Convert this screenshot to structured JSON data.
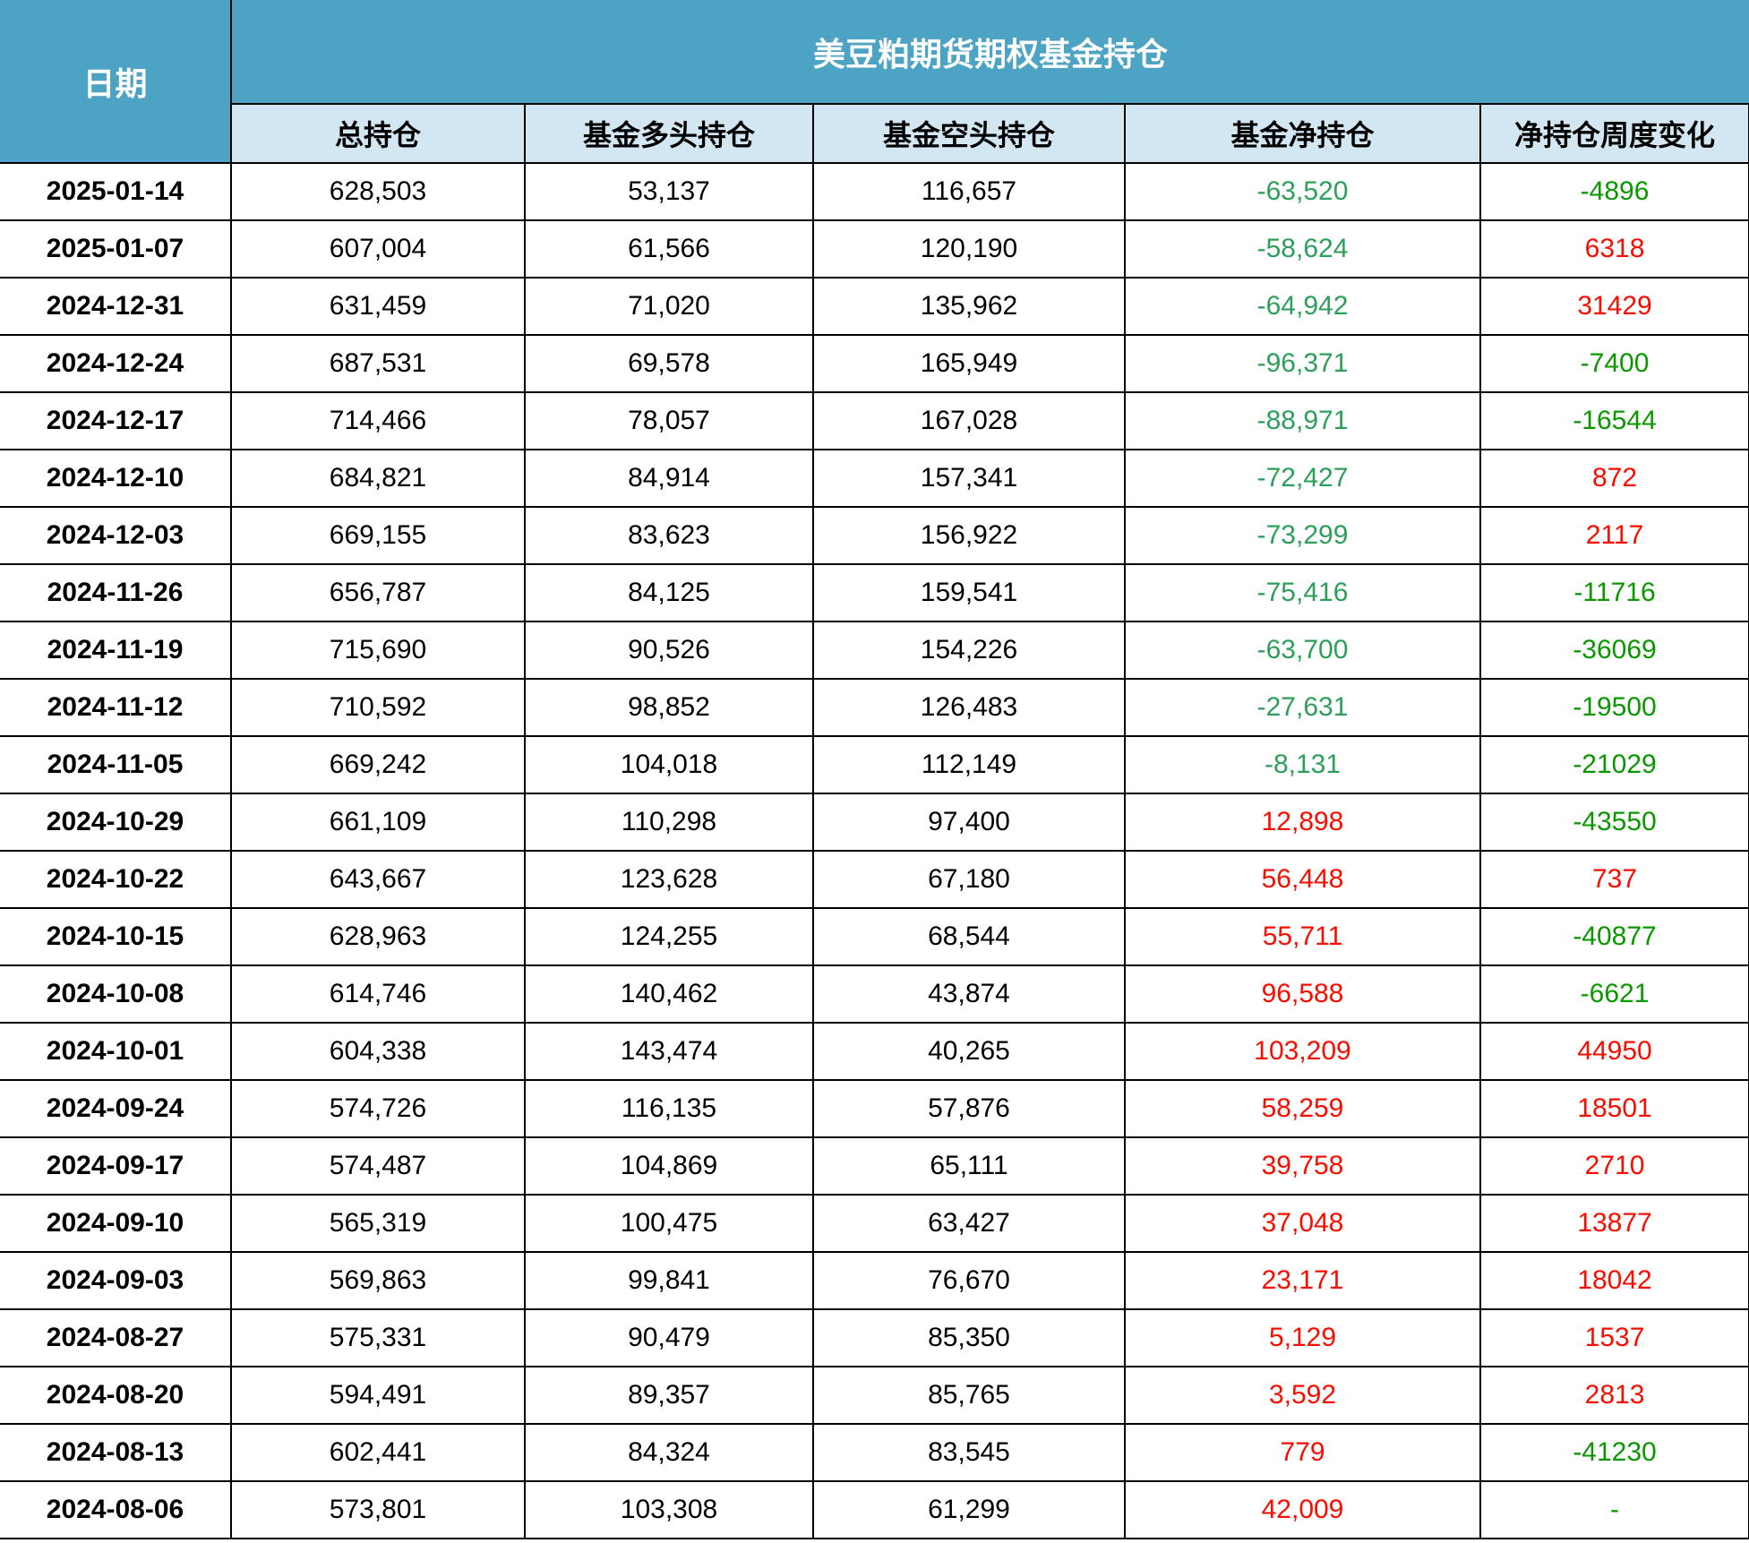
{
  "header": {
    "date_col": "日期",
    "group_title": "美豆粕期货期权基金持仓",
    "sub_columns": [
      "总持仓",
      "基金多头持仓",
      "基金空头持仓",
      "基金净持仓",
      "净持仓周度变化"
    ]
  },
  "colors": {
    "header_bg": "#4CA3C4",
    "subheader_bg": "#D3E7F2",
    "positive": "#F90D00",
    "net_negative": "#2E9E5B",
    "change_negative": "#0B9700"
  },
  "rows": [
    {
      "date": "2025-01-14",
      "total": "628,503",
      "long": "53,137",
      "short": "116,657",
      "net": "-63,520",
      "change": "-4896"
    },
    {
      "date": "2025-01-07",
      "total": "607,004",
      "long": "61,566",
      "short": "120,190",
      "net": "-58,624",
      "change": "6318"
    },
    {
      "date": "2024-12-31",
      "total": "631,459",
      "long": "71,020",
      "short": "135,962",
      "net": "-64,942",
      "change": "31429"
    },
    {
      "date": "2024-12-24",
      "total": "687,531",
      "long": "69,578",
      "short": "165,949",
      "net": "-96,371",
      "change": "-7400"
    },
    {
      "date": "2024-12-17",
      "total": "714,466",
      "long": "78,057",
      "short": "167,028",
      "net": "-88,971",
      "change": "-16544"
    },
    {
      "date": "2024-12-10",
      "total": "684,821",
      "long": "84,914",
      "short": "157,341",
      "net": "-72,427",
      "change": "872"
    },
    {
      "date": "2024-12-03",
      "total": "669,155",
      "long": "83,623",
      "short": "156,922",
      "net": "-73,299",
      "change": "2117"
    },
    {
      "date": "2024-11-26",
      "total": "656,787",
      "long": "84,125",
      "short": "159,541",
      "net": "-75,416",
      "change": "-11716"
    },
    {
      "date": "2024-11-19",
      "total": "715,690",
      "long": "90,526",
      "short": "154,226",
      "net": "-63,700",
      "change": "-36069"
    },
    {
      "date": "2024-11-12",
      "total": "710,592",
      "long": "98,852",
      "short": "126,483",
      "net": "-27,631",
      "change": "-19500"
    },
    {
      "date": "2024-11-05",
      "total": "669,242",
      "long": "104,018",
      "short": "112,149",
      "net": "-8,131",
      "change": "-21029"
    },
    {
      "date": "2024-10-29",
      "total": "661,109",
      "long": "110,298",
      "short": "97,400",
      "net": "12,898",
      "change": "-43550"
    },
    {
      "date": "2024-10-22",
      "total": "643,667",
      "long": "123,628",
      "short": "67,180",
      "net": "56,448",
      "change": "737"
    },
    {
      "date": "2024-10-15",
      "total": "628,963",
      "long": "124,255",
      "short": "68,544",
      "net": "55,711",
      "change": "-40877"
    },
    {
      "date": "2024-10-08",
      "total": "614,746",
      "long": "140,462",
      "short": "43,874",
      "net": "96,588",
      "change": "-6621"
    },
    {
      "date": "2024-10-01",
      "total": "604,338",
      "long": "143,474",
      "short": "40,265",
      "net": "103,209",
      "change": "44950"
    },
    {
      "date": "2024-09-24",
      "total": "574,726",
      "long": "116,135",
      "short": "57,876",
      "net": "58,259",
      "change": "18501"
    },
    {
      "date": "2024-09-17",
      "total": "574,487",
      "long": "104,869",
      "short": "65,111",
      "net": "39,758",
      "change": "2710"
    },
    {
      "date": "2024-09-10",
      "total": "565,319",
      "long": "100,475",
      "short": "63,427",
      "net": "37,048",
      "change": "13877"
    },
    {
      "date": "2024-09-03",
      "total": "569,863",
      "long": "99,841",
      "short": "76,670",
      "net": "23,171",
      "change": "18042"
    },
    {
      "date": "2024-08-27",
      "total": "575,331",
      "long": "90,479",
      "short": "85,350",
      "net": "5,129",
      "change": "1537"
    },
    {
      "date": "2024-08-20",
      "total": "594,491",
      "long": "89,357",
      "short": "85,765",
      "net": "3,592",
      "change": "2813"
    },
    {
      "date": "2024-08-13",
      "total": "602,441",
      "long": "84,324",
      "short": "83,545",
      "net": "779",
      "change": "-41230"
    },
    {
      "date": "2024-08-06",
      "total": "573,801",
      "long": "103,308",
      "short": "61,299",
      "net": "42,009",
      "change": "-"
    }
  ]
}
